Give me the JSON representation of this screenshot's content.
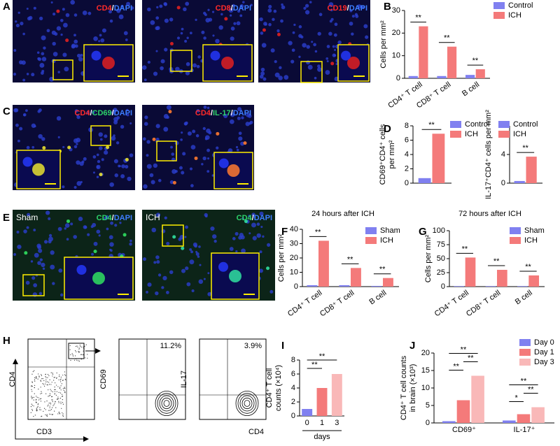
{
  "panel_labels": [
    "A",
    "B",
    "C",
    "D",
    "E",
    "F",
    "G",
    "H",
    "I",
    "J"
  ],
  "micrographs": [
    {
      "label": [
        {
          "text": "CD4",
          "color": "#ff2a2a"
        },
        {
          "text": "/",
          "color": "#ffffff"
        },
        {
          "text": "DAPI",
          "color": "#3d7dff"
        }
      ]
    },
    {
      "label": [
        {
          "text": "CD8",
          "color": "#ff2a2a"
        },
        {
          "text": "/",
          "color": "#ffffff"
        },
        {
          "text": "DAPI",
          "color": "#3d7dff"
        }
      ]
    },
    {
      "label": [
        {
          "text": "CD19",
          "color": "#ff2a2a"
        },
        {
          "text": "/",
          "color": "#ffffff"
        },
        {
          "text": "DAPI",
          "color": "#3d7dff"
        }
      ]
    },
    {
      "label": [
        {
          "text": "CD4",
          "color": "#ff2a2a"
        },
        {
          "text": "/",
          "color": "#ffffff"
        },
        {
          "text": "CD69",
          "color": "#2ed36a"
        },
        {
          "text": "/",
          "color": "#ffffff"
        },
        {
          "text": "DAPI",
          "color": "#3d7dff"
        }
      ]
    },
    {
      "label": [
        {
          "text": "CD4",
          "color": "#ff2a2a"
        },
        {
          "text": "/",
          "color": "#ffffff"
        },
        {
          "text": "IL-17",
          "color": "#2ed36a"
        },
        {
          "text": "/",
          "color": "#ffffff"
        },
        {
          "text": "DAPI",
          "color": "#3d7dff"
        }
      ]
    },
    {
      "corner_label": "Sham",
      "label": [
        {
          "text": "CD4",
          "color": "#2ed36a"
        },
        {
          "text": "/",
          "color": "#ffffff"
        },
        {
          "text": "DAPI",
          "color": "#3d7dff"
        }
      ]
    },
    {
      "corner_label": "ICH",
      "label": [
        {
          "text": "CD4",
          "color": "#2ed36a"
        },
        {
          "text": "/",
          "color": "#ffffff"
        },
        {
          "text": "DAPI",
          "color": "#3d7dff"
        }
      ]
    }
  ],
  "flow": [
    {
      "ylabel": "CD4",
      "xlabel": "CD3"
    },
    {
      "ylabel": "CD69",
      "percent": "11.2%"
    },
    {
      "ylabel": "IL-17",
      "xlabel": "CD4",
      "percent": "3.9%"
    }
  ],
  "chart_data": [
    {
      "type": "bar",
      "ylabel": "Cells per mm²",
      "categories": [
        "CD4⁺ T cell",
        "CD8⁺ T cell",
        "B cell"
      ],
      "series": [
        {
          "name": "Control",
          "color": "#8080f0",
          "values": [
            1,
            1,
            1.5
          ]
        },
        {
          "name": "ICH",
          "color": "#f47a7a",
          "values": [
            23,
            14,
            4
          ]
        }
      ],
      "ylim": [
        0,
        30
      ],
      "yticks": [
        0,
        10,
        20,
        30
      ],
      "significance": [
        "**",
        "**",
        "**"
      ]
    },
    {
      "type": "bar",
      "ylabel": [
        "CD69⁺CD4⁺ cells",
        "per mm²"
      ],
      "series": [
        {
          "name": "Control",
          "color": "#8080f0",
          "values": [
            0.7
          ]
        },
        {
          "name": "ICH",
          "color": "#f47a7a",
          "values": [
            6.9
          ]
        }
      ],
      "ylim": [
        0,
        8
      ],
      "yticks": [
        0,
        2,
        4,
        6,
        8
      ],
      "significance": [
        "**"
      ]
    },
    {
      "type": "bar",
      "ylabel": "IL-17⁺CD4⁺ cells per mm²",
      "series": [
        {
          "name": "Control",
          "color": "#8080f0",
          "values": [
            0.3
          ]
        },
        {
          "name": "ICH",
          "color": "#f47a7a",
          "values": [
            3.7
          ]
        }
      ],
      "ylim": [
        0,
        8
      ],
      "yticks": [
        0,
        4,
        8
      ],
      "significance": [
        "**"
      ]
    },
    {
      "type": "bar",
      "title": "24 hours after ICH",
      "ylabel": "Cells per mm²",
      "categories": [
        "CD4⁺ T cell",
        "CD8⁺ T cell",
        "B cell"
      ],
      "series": [
        {
          "name": "Sham",
          "color": "#8080f0",
          "values": [
            1,
            1,
            0.5
          ]
        },
        {
          "name": "ICH",
          "color": "#f47a7a",
          "values": [
            32,
            13,
            6
          ]
        }
      ],
      "ylim": [
        0,
        40
      ],
      "yticks": [
        0,
        10,
        20,
        30,
        40
      ],
      "significance": [
        "**",
        "**",
        "**"
      ]
    },
    {
      "type": "bar",
      "title": "72 hours after ICH",
      "ylabel": "Cells per mm²",
      "categories": [
        "CD4⁺ T cell",
        "CD8⁺ T cell",
        "B cell"
      ],
      "series": [
        {
          "name": "Sham",
          "color": "#8080f0",
          "values": [
            1,
            1,
            1
          ]
        },
        {
          "name": "ICH",
          "color": "#f47a7a",
          "values": [
            52,
            30,
            20
          ]
        }
      ],
      "ylim": [
        0,
        100
      ],
      "yticks": [
        0,
        25,
        50,
        75,
        100
      ],
      "significance": [
        "**",
        "**",
        "**"
      ]
    },
    {
      "type": "bar",
      "ylabel": [
        "CD4⁺ T cell",
        "counts (×10⁴)"
      ],
      "xlabel": "days",
      "categories": [
        "0",
        "1",
        "3"
      ],
      "values": [
        1,
        4,
        6
      ],
      "colors": [
        "#8080f0",
        "#f47a7a",
        "#f9b8b8"
      ],
      "ylim": [
        0,
        8
      ],
      "yticks": [
        0,
        2,
        4,
        6,
        8
      ],
      "significance": [
        "**",
        "**"
      ]
    },
    {
      "type": "bar",
      "ylabel": [
        "CD4⁺ T cell counts",
        "in brain (×10³)"
      ],
      "categories": [
        "CD69⁺",
        "IL-17⁺"
      ],
      "series": [
        {
          "name": "Day 0",
          "color": "#8080f0",
          "values": [
            0.5,
            0.7
          ]
        },
        {
          "name": "Day 1",
          "color": "#f47a7a",
          "values": [
            6.5,
            2.5
          ]
        },
        {
          "name": "Day 3",
          "color": "#f9b8b8",
          "values": [
            13.5,
            4.5
          ]
        }
      ],
      "ylim": [
        0,
        20
      ],
      "yticks": [
        0,
        5,
        10,
        15,
        20
      ],
      "significance": [
        "**",
        "**",
        "**",
        "*",
        "**",
        "**"
      ]
    }
  ]
}
